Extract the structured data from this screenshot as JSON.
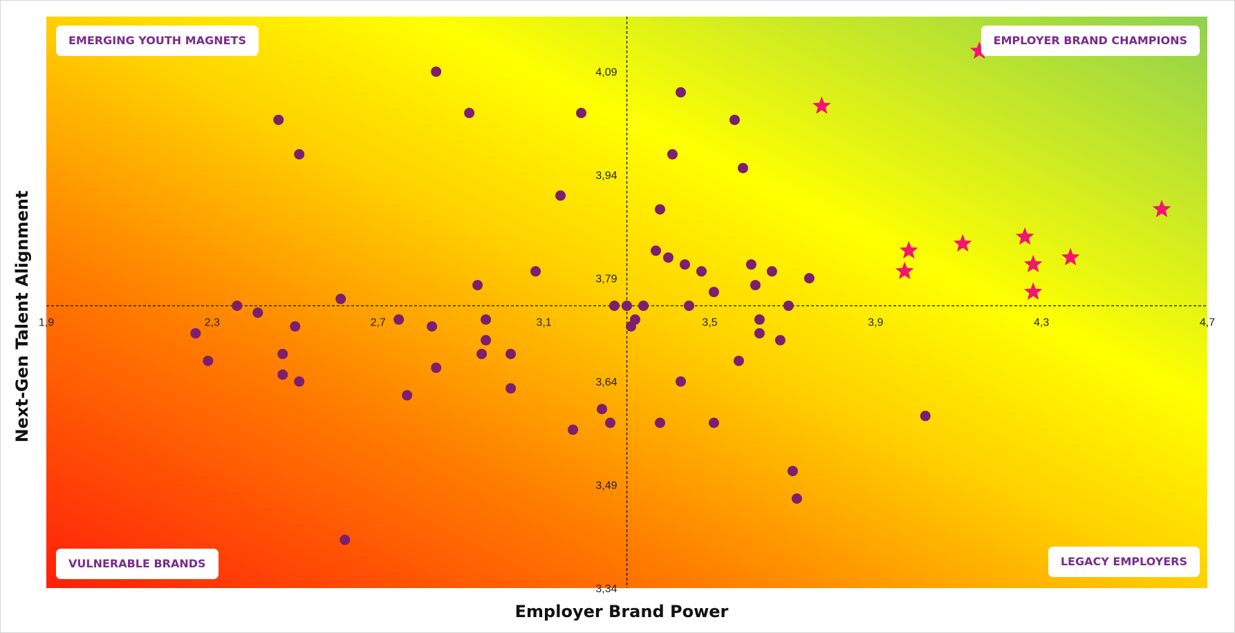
{
  "chart_data": {
    "type": "scatter",
    "title": "",
    "xlabel": "Employer Brand Power",
    "ylabel": "Next-Gen Talent Alignment",
    "xlim": [
      1.9,
      4.7
    ],
    "ylim": [
      3.34,
      4.17
    ],
    "x_ticks": [
      "1,9",
      "2,3",
      "2,7",
      "3,1",
      "3,5",
      "3,9",
      "4,3",
      "4,7"
    ],
    "y_ticks": [
      "3,34",
      "3,49",
      "3,64",
      "3,79",
      "3,94",
      "4,09"
    ],
    "reference_lines": {
      "x": 3.3,
      "y": 3.75
    },
    "quadrant_labels": {
      "top_left": "EMERGING YOUTH MAGNETS",
      "top_right": "EMPLOYER BRAND CHAMPIONS",
      "bottom_left": "VULNERABLE BRANDS",
      "bottom_right": "LEGACY EMPLOYERS"
    },
    "background_gradient": [
      "#ff1f0a",
      "#ff7a00",
      "#ffd000",
      "#ffff00",
      "#8fd14f"
    ],
    "grid": false,
    "legend": "none",
    "series": [
      {
        "marker": "circle",
        "color": "#7b1f6e",
        "points": [
          [
            2.26,
            3.71
          ],
          [
            2.29,
            3.67
          ],
          [
            2.36,
            3.75
          ],
          [
            2.41,
            3.74
          ],
          [
            2.46,
            4.02
          ],
          [
            2.47,
            3.68
          ],
          [
            2.47,
            3.65
          ],
          [
            2.5,
            3.72
          ],
          [
            2.51,
            3.97
          ],
          [
            2.51,
            3.64
          ],
          [
            2.61,
            3.76
          ],
          [
            2.62,
            3.41
          ],
          [
            2.75,
            3.73
          ],
          [
            2.77,
            3.62
          ],
          [
            2.83,
            3.72
          ],
          [
            2.84,
            3.66
          ],
          [
            2.84,
            4.09
          ],
          [
            2.92,
            4.03
          ],
          [
            2.94,
            3.78
          ],
          [
            2.95,
            3.68
          ],
          [
            2.96,
            3.73
          ],
          [
            2.96,
            3.7
          ],
          [
            3.02,
            3.68
          ],
          [
            3.02,
            3.63
          ],
          [
            3.08,
            3.8
          ],
          [
            3.14,
            3.91
          ],
          [
            3.17,
            3.57
          ],
          [
            3.24,
            3.6
          ],
          [
            3.19,
            4.03
          ],
          [
            3.26,
            3.58
          ],
          [
            3.27,
            3.75
          ],
          [
            3.3,
            3.75
          ],
          [
            3.31,
            3.72
          ],
          [
            3.32,
            3.73
          ],
          [
            3.34,
            3.75
          ],
          [
            3.37,
            3.83
          ],
          [
            3.38,
            3.89
          ],
          [
            3.38,
            3.58
          ],
          [
            3.4,
            3.82
          ],
          [
            3.41,
            3.97
          ],
          [
            3.43,
            4.06
          ],
          [
            3.43,
            3.64
          ],
          [
            3.44,
            3.81
          ],
          [
            3.45,
            3.75
          ],
          [
            3.48,
            3.8
          ],
          [
            3.51,
            3.77
          ],
          [
            3.51,
            3.58
          ],
          [
            3.56,
            4.02
          ],
          [
            3.57,
            3.67
          ],
          [
            3.58,
            3.95
          ],
          [
            3.6,
            3.81
          ],
          [
            3.61,
            3.78
          ],
          [
            3.62,
            3.73
          ],
          [
            3.62,
            3.71
          ],
          [
            3.67,
            3.7
          ],
          [
            3.65,
            3.8
          ],
          [
            3.69,
            3.75
          ],
          [
            3.7,
            3.51
          ],
          [
            3.71,
            3.47
          ],
          [
            3.74,
            3.79
          ],
          [
            4.02,
            3.59
          ]
        ]
      },
      {
        "marker": "star",
        "color": "#f2166f",
        "points": [
          [
            3.77,
            4.04
          ],
          [
            3.97,
            3.8
          ],
          [
            3.98,
            3.83
          ],
          [
            4.11,
            3.84
          ],
          [
            4.15,
            4.12
          ],
          [
            4.26,
            3.85
          ],
          [
            4.28,
            3.81
          ],
          [
            4.28,
            3.77
          ],
          [
            4.37,
            3.82
          ],
          [
            4.59,
            3.89
          ]
        ]
      }
    ]
  }
}
